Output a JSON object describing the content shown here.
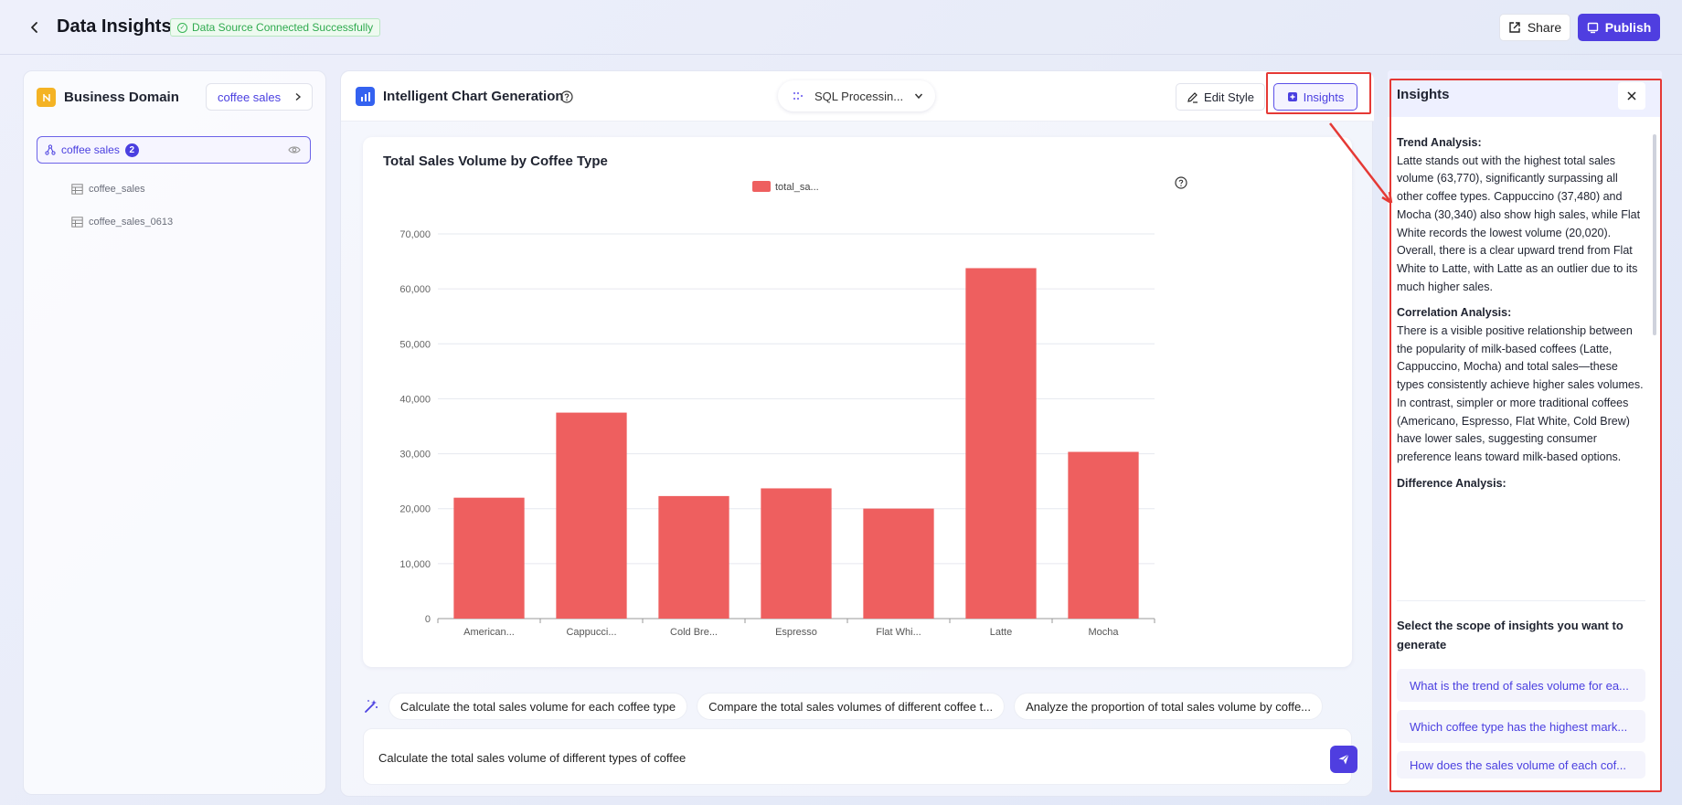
{
  "header": {
    "title": "Data Insights",
    "status": "Data Source Connected Successfully",
    "share_label": "Share",
    "publish_label": "Publish"
  },
  "sidebar": {
    "title": "Business Domain",
    "selector_value": "coffee sales",
    "domain": {
      "label": "coffee sales",
      "count": "2"
    },
    "tables": [
      "coffee_sales",
      "coffee_sales_0613"
    ]
  },
  "center": {
    "title": "Intelligent Chart Generation",
    "sql_status": "SQL Processin...",
    "edit_style_label": "Edit Style",
    "insights_label": "Insights",
    "suggestions": [
      "Calculate the total sales volume for each coffee type",
      "Compare the total sales volumes of different coffee t...",
      "Analyze the proportion of total sales volume by coffe..."
    ],
    "input_value": "Calculate the total sales volume of different types of coffee"
  },
  "chart_data": {
    "type": "bar",
    "title": "Total Sales Volume by Coffee Type",
    "legend": [
      "total_sa..."
    ],
    "legend_position": "top-center",
    "categories": [
      "American...",
      "Cappucci...",
      "Cold Bre...",
      "Espresso",
      "Flat Whi...",
      "Latte",
      "Mocha"
    ],
    "series": [
      {
        "name": "total_sa...",
        "values": [
          22000,
          37480,
          22300,
          23700,
          20020,
          63770,
          30340
        ]
      }
    ],
    "ylim": [
      0,
      70000
    ],
    "yticks": [
      "0",
      "10,000",
      "20,000",
      "30,000",
      "40,000",
      "50,000",
      "60,000",
      "70,000"
    ],
    "grid": true,
    "color": "#ee5f5f"
  },
  "insights_panel": {
    "title": "Insights",
    "sections": [
      {
        "heading": "Trend Analysis:",
        "text": "Latte stands out with the highest total sales volume (63,770), significantly surpassing all other coffee types. Cappuccino (37,480) and Mocha (30,340) also show high sales, while Flat White records the lowest volume (20,020). Overall, there is a clear upward trend from Flat White to Latte, with Latte as an outlier due to its much higher sales."
      },
      {
        "heading": "Correlation Analysis:",
        "text": "There is a visible positive relationship between the popularity of milk-based coffees (Latte, Cappuccino, Mocha) and total sales—these types consistently achieve higher sales volumes. In contrast, simpler or more traditional coffees (Americano, Espresso, Flat White, Cold Brew) have lower sales, suggesting consumer preference leans toward milk-based options."
      },
      {
        "heading": "Difference Analysis:",
        "text": ""
      }
    ],
    "scope_label": "Select the scope of insights you want to generate",
    "questions": [
      "What is the trend of sales volume for ea...",
      "Which coffee type has the highest mark...",
      "How does the sales volume of each cof..."
    ]
  },
  "colors": {
    "accent": "#4f3ee0",
    "bar": "#ee5f5f",
    "success": "#2faa4f",
    "highlight": "#e53935"
  }
}
